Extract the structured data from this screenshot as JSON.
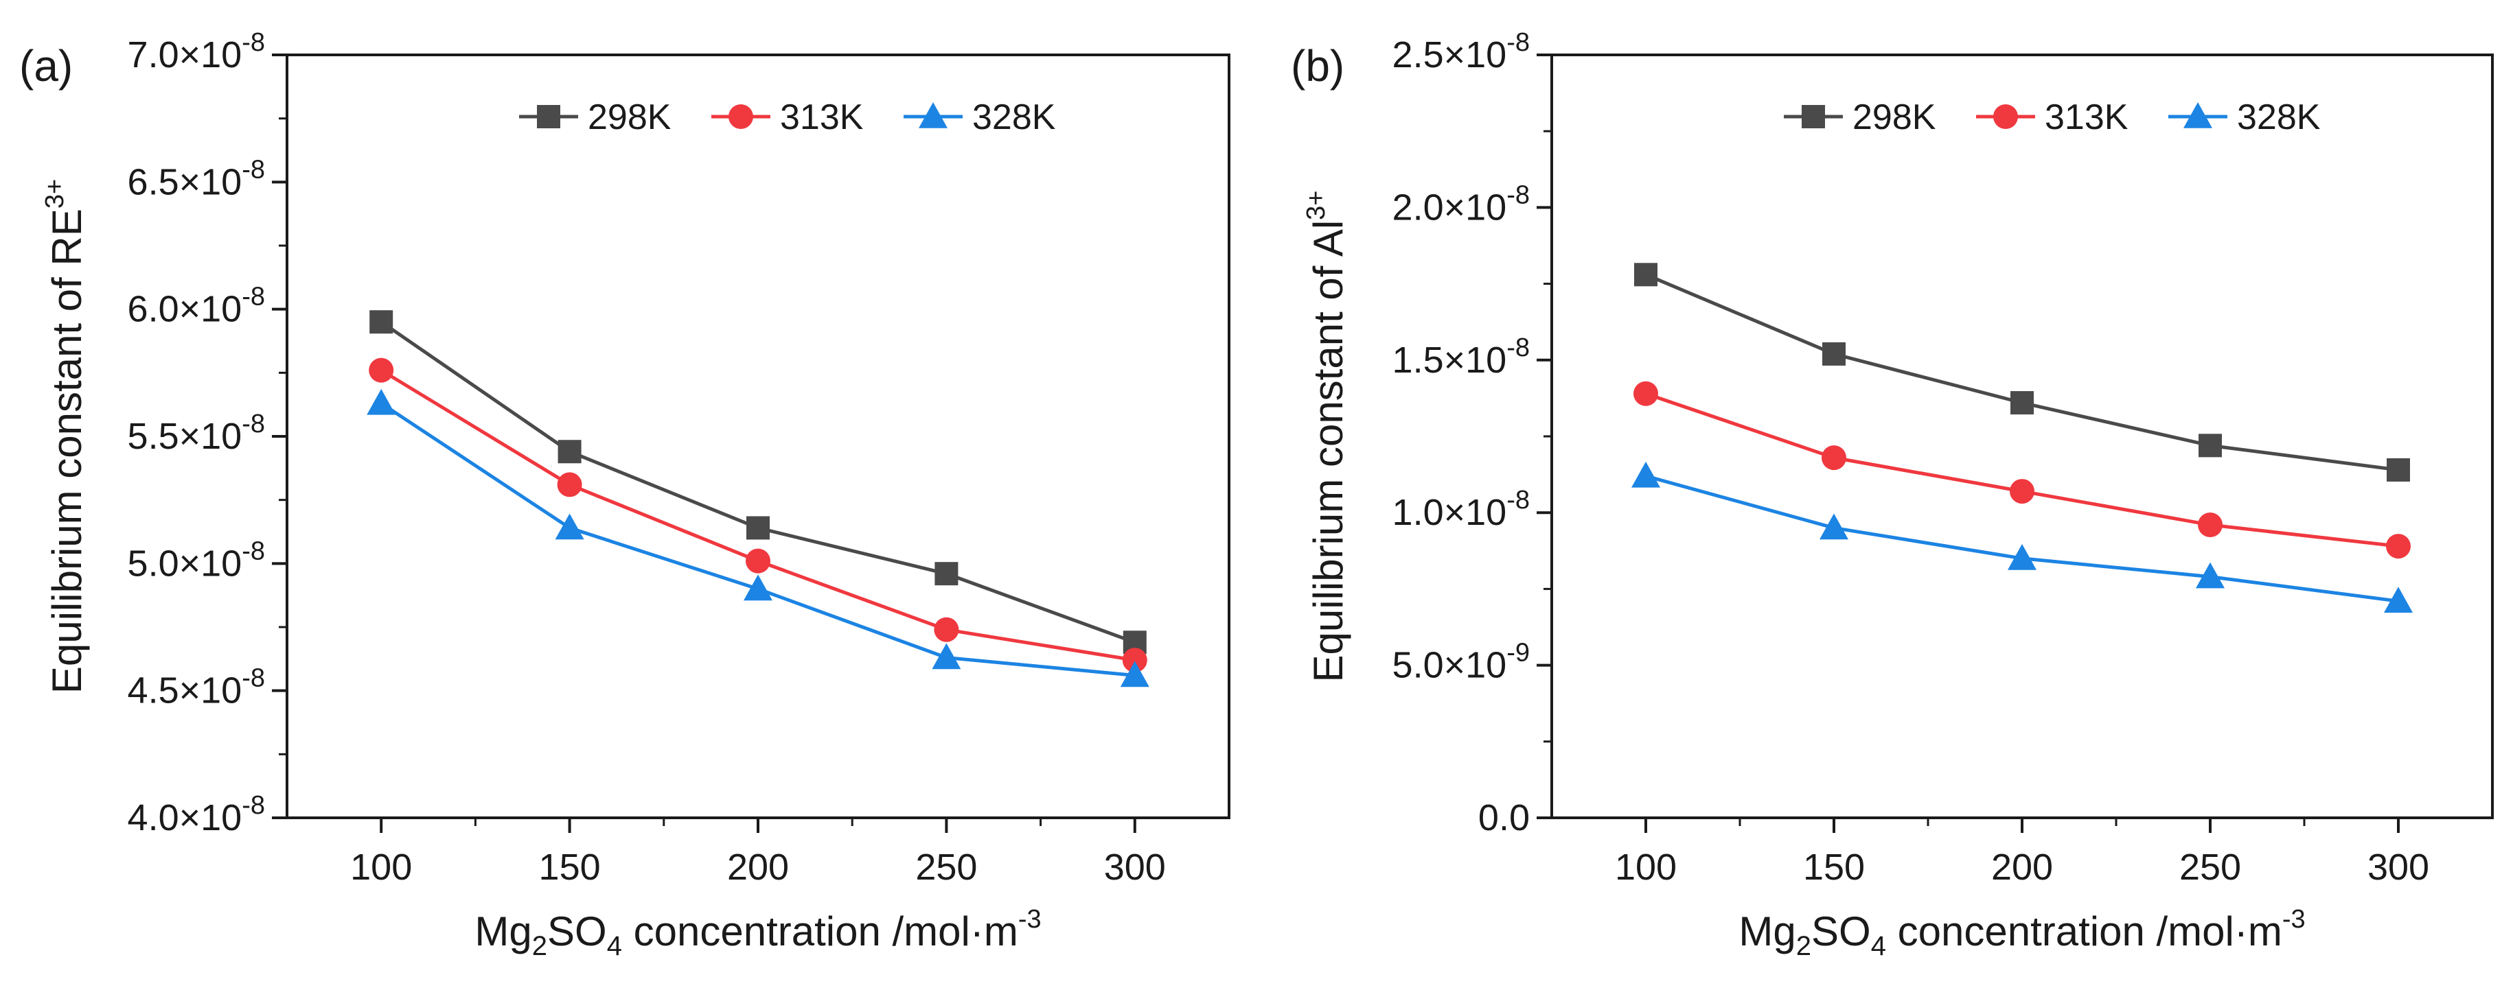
{
  "chart_data": [
    {
      "type": "line",
      "panel_label": "(a)",
      "xlabel": {
        "base": "Mg",
        "sub1": "2",
        "mid": "SO",
        "sub2": "4",
        "rest": " concentration /mol·m",
        "sup": "-3"
      },
      "ylabel": {
        "text": "Equilibrium constant of RE",
        "sup": "3+"
      },
      "xlim": [
        75,
        325
      ],
      "ylim": [
        4e-08,
        7e-08
      ],
      "x_ticks": [
        100,
        150,
        200,
        250,
        300
      ],
      "x_tick_labels": [
        "100",
        "150",
        "200",
        "250",
        "300"
      ],
      "y_ticks": [
        4e-08,
        4.5e-08,
        5e-08,
        5.5e-08,
        6e-08,
        6.5e-08,
        7e-08
      ],
      "y_tick_labels": [
        {
          "mant": "4.0×10",
          "exp": "-8"
        },
        {
          "mant": "4.5×10",
          "exp": "-8"
        },
        {
          "mant": "5.0×10",
          "exp": "-8"
        },
        {
          "mant": "5.5×10",
          "exp": "-8"
        },
        {
          "mant": "6.0×10",
          "exp": "-8"
        },
        {
          "mant": "6.5×10",
          "exp": "-8"
        },
        {
          "mant": "7.0×10",
          "exp": "-8"
        }
      ],
      "legend_position": "top-right",
      "x": [
        100,
        150,
        200,
        250,
        300
      ],
      "series": [
        {
          "name": "298K",
          "color": "#4a4a4a",
          "marker": "square",
          "values": [
            5.95e-08,
            5.44e-08,
            5.14e-08,
            4.96e-08,
            4.69e-08
          ]
        },
        {
          "name": "313K",
          "color": "#f0383f",
          "marker": "circle",
          "values": [
            5.76e-08,
            5.31e-08,
            5.01e-08,
            4.74e-08,
            4.62e-08
          ]
        },
        {
          "name": "328K",
          "color": "#1c84e3",
          "marker": "triangle",
          "values": [
            5.63e-08,
            5.14e-08,
            4.9e-08,
            4.63e-08,
            4.56e-08
          ]
        }
      ]
    },
    {
      "type": "line",
      "panel_label": "(b)",
      "xlabel": {
        "base": "Mg",
        "sub1": "2",
        "mid": "SO",
        "sub2": "4",
        "rest": " concentration /mol·m",
        "sup": "-3"
      },
      "ylabel": {
        "text": "Equilibrium constant of Al",
        "sup": "3+"
      },
      "xlim": [
        75,
        325
      ],
      "ylim": [
        0,
        2.5e-08
      ],
      "x_ticks": [
        100,
        150,
        200,
        250,
        300
      ],
      "x_tick_labels": [
        "100",
        "150",
        "200",
        "250",
        "300"
      ],
      "y_ticks": [
        0,
        5e-09,
        1e-08,
        1.5e-08,
        2e-08,
        2.5e-08
      ],
      "y_tick_labels": [
        {
          "mant": "0.0",
          "exp": ""
        },
        {
          "mant": "5.0×10",
          "exp": "-9"
        },
        {
          "mant": "1.0×10",
          "exp": "-8"
        },
        {
          "mant": "1.5×10",
          "exp": "-8"
        },
        {
          "mant": "2.0×10",
          "exp": "-8"
        },
        {
          "mant": "2.5×10",
          "exp": "-8"
        }
      ],
      "legend_position": "top-right",
      "x": [
        100,
        150,
        200,
        250,
        300
      ],
      "series": [
        {
          "name": "298K",
          "color": "#4a4a4a",
          "marker": "square",
          "values": [
            1.78e-08,
            1.52e-08,
            1.36e-08,
            1.22e-08,
            1.14e-08
          ]
        },
        {
          "name": "313K",
          "color": "#f0383f",
          "marker": "circle",
          "values": [
            1.39e-08,
            1.18e-08,
            1.07e-08,
            9.6e-09,
            8.9e-09
          ]
        },
        {
          "name": "328K",
          "color": "#1c84e3",
          "marker": "triangle",
          "values": [
            1.12e-08,
            9.5e-09,
            8.5e-09,
            7.9e-09,
            7.1e-09
          ]
        }
      ]
    }
  ]
}
